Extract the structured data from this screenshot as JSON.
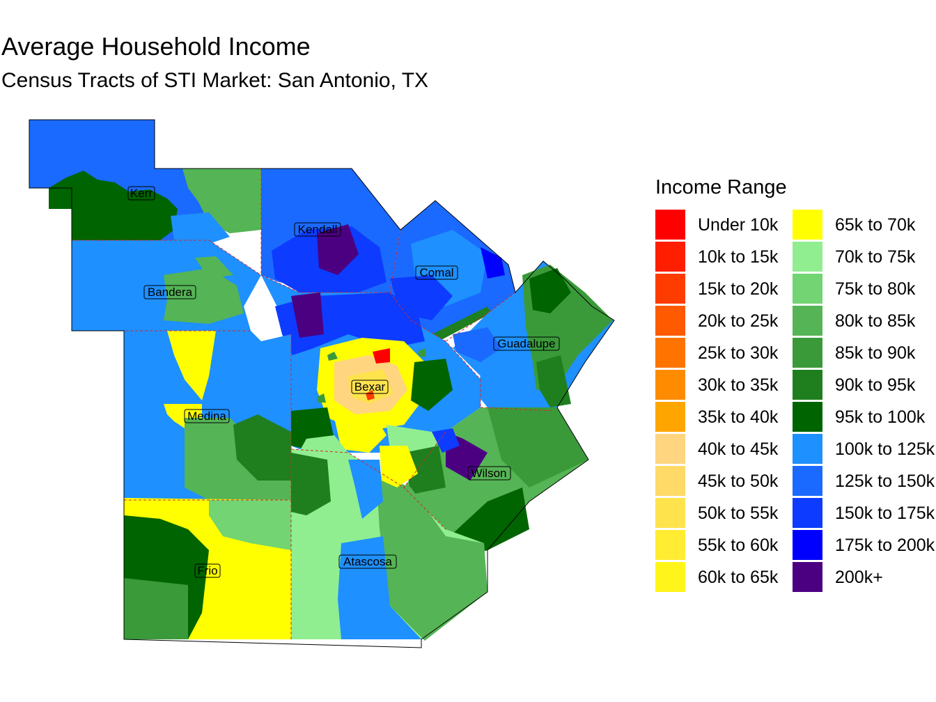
{
  "title": "Average Household Income",
  "subtitle": "Census Tracts of STI Market: San Antonio, TX",
  "legend": {
    "title": "Income Range",
    "items": [
      {
        "label": "Under 10k",
        "color": "#FF0000"
      },
      {
        "label": "10k to 15k",
        "color": "#FF1E00"
      },
      {
        "label": "15k to 20k",
        "color": "#FF3C00"
      },
      {
        "label": "20k to 25k",
        "color": "#FF5A00"
      },
      {
        "label": "25k to 30k",
        "color": "#FF7300"
      },
      {
        "label": "30k to 35k",
        "color": "#FF8C00"
      },
      {
        "label": "35k to 40k",
        "color": "#FFA500"
      },
      {
        "label": "40k to 45k",
        "color": "#FFD580"
      },
      {
        "label": "45k to 50k",
        "color": "#FFDA66"
      },
      {
        "label": "50k to 55k",
        "color": "#FFE34D"
      },
      {
        "label": "55k to 60k",
        "color": "#FFEC33"
      },
      {
        "label": "60k to 65k",
        "color": "#FFF51A"
      },
      {
        "label": "65k to 70k",
        "color": "#FFFF00"
      },
      {
        "label": "70k to 75k",
        "color": "#90EE90"
      },
      {
        "label": "75k to 80k",
        "color": "#72D472"
      },
      {
        "label": "80k to 85k",
        "color": "#55B455"
      },
      {
        "label": "85k to 90k",
        "color": "#3A9A3A"
      },
      {
        "label": "90k to 95k",
        "color": "#1F7F1F"
      },
      {
        "label": "95k to 100k",
        "color": "#006400"
      },
      {
        "label": "100k to 125k",
        "color": "#1E90FF"
      },
      {
        "label": "125k to 150k",
        "color": "#1A6AFF"
      },
      {
        "label": "150k to 175k",
        "color": "#0D3BFF"
      },
      {
        "label": "175k to 200k",
        "color": "#0000FF"
      },
      {
        "label": "200k+",
        "color": "#4B0082"
      }
    ]
  },
  "counties": [
    "Kerr",
    "Kendall",
    "Comal",
    "Bandera",
    "Guadalupe",
    "Bexar",
    "Medina",
    "Wilson",
    "Frio",
    "Atascosa"
  ],
  "colors": {
    "county_border": "#D62728",
    "outline": "#000000"
  }
}
